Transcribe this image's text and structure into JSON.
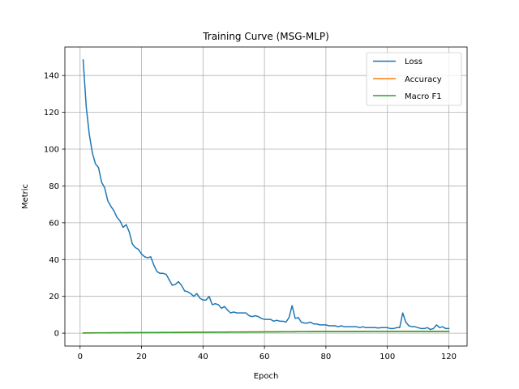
{
  "chart_data": {
    "type": "line",
    "title": "Training Curve (MSG-MLP)",
    "xlabel": "Epoch",
    "ylabel": "Metric",
    "xlim": [
      -4.95,
      125.95
    ],
    "ylim": [
      -7.0,
      155.5
    ],
    "xticks": [
      0,
      20,
      40,
      60,
      80,
      100,
      120
    ],
    "yticks": [
      0,
      20,
      40,
      60,
      80,
      100,
      120,
      140
    ],
    "grid": true,
    "legend_position": "top-right",
    "x": [
      1,
      2,
      3,
      4,
      5,
      6,
      7,
      8,
      9,
      10,
      11,
      12,
      13,
      14,
      15,
      16,
      17,
      18,
      19,
      20,
      21,
      22,
      23,
      24,
      25,
      26,
      27,
      28,
      29,
      30,
      31,
      32,
      33,
      34,
      35,
      36,
      37,
      38,
      39,
      40,
      41,
      42,
      43,
      44,
      45,
      46,
      47,
      48,
      49,
      50,
      51,
      52,
      53,
      54,
      55,
      56,
      57,
      58,
      59,
      60,
      61,
      62,
      63,
      64,
      65,
      66,
      67,
      68,
      69,
      70,
      71,
      72,
      73,
      74,
      75,
      76,
      77,
      78,
      79,
      80,
      81,
      82,
      83,
      84,
      85,
      86,
      87,
      88,
      89,
      90,
      91,
      92,
      93,
      94,
      95,
      96,
      97,
      98,
      99,
      100,
      101,
      102,
      103,
      104,
      105,
      106,
      107,
      108,
      109,
      110,
      111,
      112,
      113,
      114,
      115,
      116,
      117,
      118,
      119,
      120
    ],
    "series": [
      {
        "name": "Loss",
        "color": "#1f77b4",
        "values": [
          148.5,
          123.0,
          108.0,
          98.0,
          92.0,
          90.0,
          82.0,
          79.0,
          72.0,
          69.0,
          66.5,
          63.0,
          61.0,
          57.5,
          59.0,
          55.0,
          48.5,
          46.5,
          45.5,
          43.0,
          41.5,
          41.0,
          41.5,
          37.0,
          33.5,
          32.5,
          32.5,
          32.0,
          29.0,
          26.0,
          26.5,
          28.0,
          26.0,
          23.0,
          22.5,
          21.5,
          20.0,
          21.5,
          19.0,
          18.0,
          18.0,
          20.0,
          15.5,
          16.0,
          15.5,
          13.5,
          14.5,
          12.5,
          11.0,
          11.5,
          11.0,
          11.0,
          11.0,
          11.0,
          9.5,
          9.0,
          9.5,
          9.0,
          8.0,
          7.5,
          7.5,
          7.5,
          6.5,
          7.0,
          6.5,
          6.5,
          6.0,
          8.5,
          15.0,
          8.0,
          8.5,
          6.0,
          5.5,
          5.5,
          6.0,
          5.0,
          5.0,
          4.5,
          4.5,
          4.5,
          4.0,
          4.0,
          4.0,
          3.5,
          4.0,
          3.5,
          3.5,
          3.5,
          3.5,
          3.5,
          3.0,
          3.5,
          3.0,
          3.0,
          3.0,
          3.0,
          2.8,
          3.0,
          3.0,
          3.0,
          2.5,
          2.5,
          3.0,
          3.0,
          11.0,
          6.0,
          4.0,
          3.5,
          3.5,
          3.0,
          2.5,
          2.5,
          3.0,
          2.0,
          2.5,
          4.5,
          3.0,
          3.5,
          2.5,
          2.5
        ]
      },
      {
        "name": "Accuracy",
        "color": "#ff7f0e",
        "values": [
          0.12,
          0.15,
          0.17,
          0.19,
          0.2,
          0.21,
          0.22,
          0.23,
          0.24,
          0.25,
          0.26,
          0.27,
          0.28,
          0.29,
          0.3,
          0.31,
          0.32,
          0.33,
          0.34,
          0.35,
          0.36,
          0.37,
          0.38,
          0.39,
          0.4,
          0.41,
          0.42,
          0.43,
          0.44,
          0.45,
          0.46,
          0.47,
          0.48,
          0.49,
          0.5,
          0.51,
          0.52,
          0.53,
          0.54,
          0.55,
          0.56,
          0.57,
          0.58,
          0.59,
          0.6,
          0.61,
          0.62,
          0.63,
          0.64,
          0.65,
          0.66,
          0.67,
          0.68,
          0.69,
          0.7,
          0.71,
          0.72,
          0.73,
          0.74,
          0.75,
          0.76,
          0.77,
          0.78,
          0.79,
          0.8,
          0.81,
          0.82,
          0.83,
          0.84,
          0.85,
          0.86,
          0.87,
          0.88,
          0.89,
          0.9,
          0.91,
          0.92,
          0.92,
          0.93,
          0.93,
          0.94,
          0.94,
          0.94,
          0.95,
          0.95,
          0.95,
          0.95,
          0.96,
          0.96,
          0.96,
          0.96,
          0.96,
          0.97,
          0.97,
          0.97,
          0.97,
          0.97,
          0.97,
          0.97,
          0.98,
          0.98,
          0.98,
          0.98,
          0.98,
          0.98,
          0.98,
          0.98,
          0.98,
          0.98,
          0.98,
          0.98,
          0.98,
          0.98,
          0.98,
          0.98,
          0.98,
          0.98,
          0.98,
          0.98,
          0.98
        ]
      },
      {
        "name": "Macro F1",
        "color": "#2ca02c",
        "values": [
          0.05,
          0.08,
          0.1,
          0.12,
          0.13,
          0.14,
          0.15,
          0.16,
          0.17,
          0.18,
          0.19,
          0.2,
          0.21,
          0.22,
          0.23,
          0.24,
          0.25,
          0.26,
          0.27,
          0.28,
          0.29,
          0.3,
          0.31,
          0.32,
          0.33,
          0.34,
          0.35,
          0.36,
          0.37,
          0.38,
          0.39,
          0.4,
          0.41,
          0.42,
          0.43,
          0.44,
          0.45,
          0.46,
          0.47,
          0.48,
          0.49,
          0.5,
          0.51,
          0.52,
          0.53,
          0.54,
          0.55,
          0.56,
          0.57,
          0.58,
          0.59,
          0.6,
          0.61,
          0.62,
          0.63,
          0.64,
          0.65,
          0.66,
          0.67,
          0.68,
          0.69,
          0.7,
          0.71,
          0.72,
          0.73,
          0.74,
          0.75,
          0.76,
          0.77,
          0.78,
          0.79,
          0.8,
          0.81,
          0.82,
          0.83,
          0.84,
          0.85,
          0.85,
          0.86,
          0.86,
          0.87,
          0.87,
          0.87,
          0.88,
          0.88,
          0.88,
          0.88,
          0.89,
          0.89,
          0.89,
          0.89,
          0.89,
          0.9,
          0.9,
          0.9,
          0.9,
          0.9,
          0.9,
          0.9,
          0.91,
          0.91,
          0.91,
          0.91,
          0.91,
          0.91,
          0.91,
          0.91,
          0.91,
          0.91,
          0.91,
          0.91,
          0.91,
          0.91,
          0.91,
          0.91,
          0.91,
          0.91,
          0.91,
          0.91,
          0.91
        ]
      }
    ]
  }
}
